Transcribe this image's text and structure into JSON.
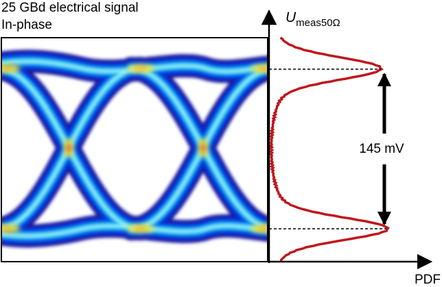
{
  "header": {
    "title": "25 GBd electrical signal",
    "subtitle": "In-phase"
  },
  "axes": {
    "y_label": "U",
    "y_label_sub": "meas50Ω",
    "x_label": "PDF"
  },
  "annotation": "145 mV"
}
